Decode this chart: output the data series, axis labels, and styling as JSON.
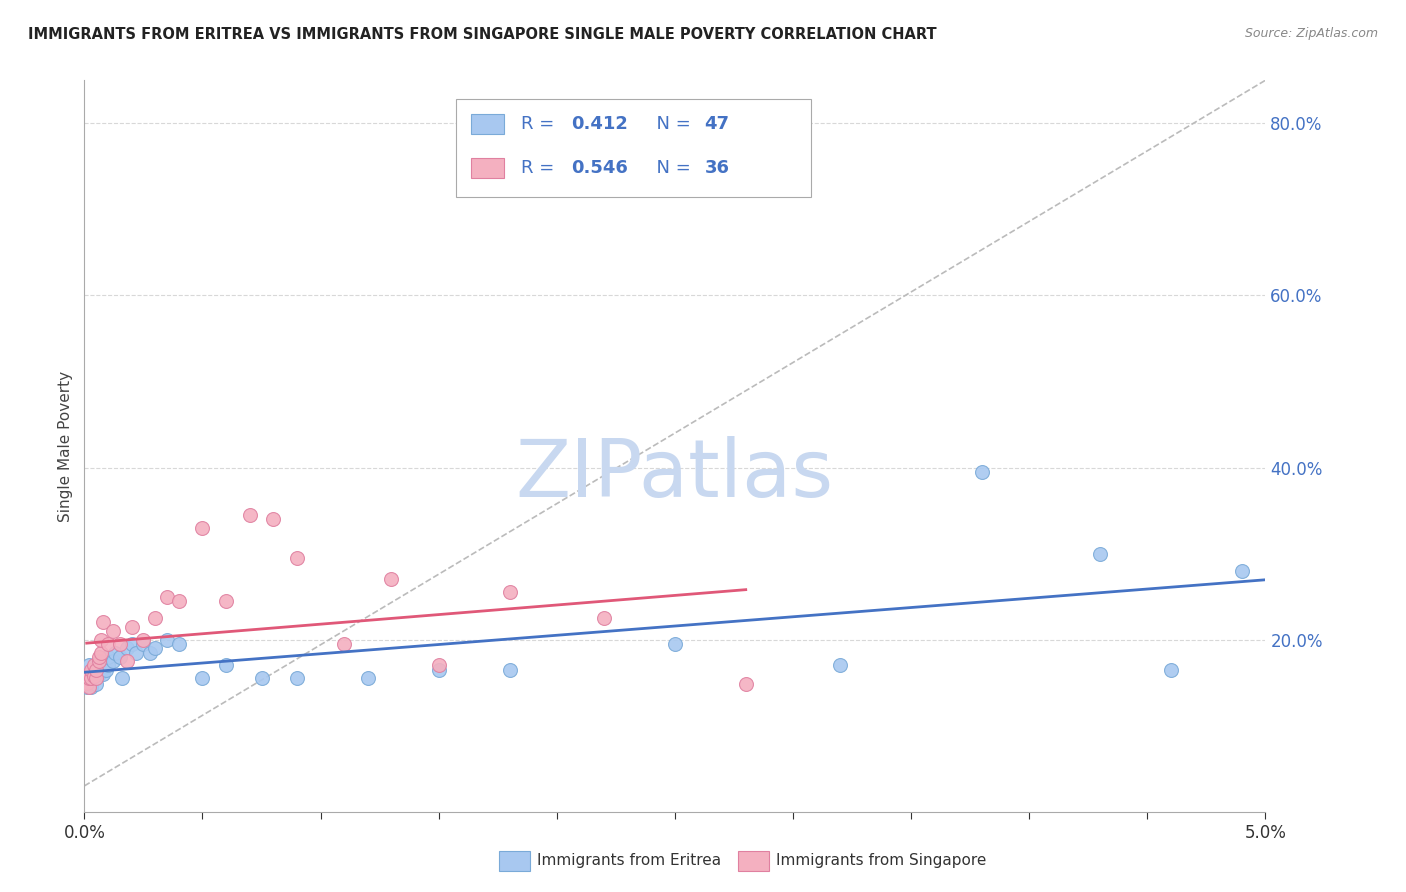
{
  "title": "IMMIGRANTS FROM ERITREA VS IMMIGRANTS FROM SINGAPORE SINGLE MALE POVERTY CORRELATION CHART",
  "source": "Source: ZipAtlas.com",
  "ylabel": "Single Male Poverty",
  "xlim": [
    0.0,
    0.05
  ],
  "ylim": [
    0.0,
    0.85
  ],
  "yticks_right": [
    0.2,
    0.4,
    0.6,
    0.8
  ],
  "ytick_labels_right": [
    "20.0%",
    "40.0%",
    "60.0%",
    "80.0%"
  ],
  "right_axis_color": "#4472C4",
  "watermark": "ZIPatlas",
  "watermark_color": "#c8d8f0",
  "legend_r1_val": "0.412",
  "legend_n1_val": "47",
  "legend_r2_val": "0.546",
  "legend_n2_val": "36",
  "series1_color": "#a8c8f0",
  "series1_edge": "#7aaad8",
  "series2_color": "#f4b0c0",
  "series2_edge": "#e080a0",
  "trendline1_color": "#4472C4",
  "trendline2_color": "#e05878",
  "refline_color": "#bbbbbb",
  "series1_label": "Immigrants from Eritrea",
  "series2_label": "Immigrants from Singapore",
  "series1_x": [
    0.0001,
    0.0001,
    0.0001,
    0.0002,
    0.0002,
    0.0002,
    0.0002,
    0.0003,
    0.0003,
    0.0003,
    0.0004,
    0.0004,
    0.0005,
    0.0005,
    0.0006,
    0.0006,
    0.0007,
    0.0007,
    0.0008,
    0.0009,
    0.001,
    0.001,
    0.0012,
    0.0013,
    0.0015,
    0.0016,
    0.0018,
    0.002,
    0.0022,
    0.0025,
    0.0028,
    0.003,
    0.0035,
    0.004,
    0.005,
    0.006,
    0.0075,
    0.009,
    0.012,
    0.015,
    0.018,
    0.025,
    0.032,
    0.038,
    0.043,
    0.046,
    0.049
  ],
  "series1_y": [
    0.155,
    0.16,
    0.145,
    0.15,
    0.155,
    0.148,
    0.17,
    0.15,
    0.155,
    0.145,
    0.158,
    0.163,
    0.155,
    0.148,
    0.16,
    0.17,
    0.162,
    0.175,
    0.16,
    0.165,
    0.17,
    0.18,
    0.175,
    0.185,
    0.18,
    0.155,
    0.19,
    0.195,
    0.185,
    0.195,
    0.185,
    0.19,
    0.2,
    0.195,
    0.155,
    0.17,
    0.155,
    0.155,
    0.155,
    0.165,
    0.165,
    0.195,
    0.17,
    0.395,
    0.3,
    0.165,
    0.28
  ],
  "series2_x": [
    0.0001,
    0.0001,
    0.0002,
    0.0002,
    0.0002,
    0.0003,
    0.0003,
    0.0004,
    0.0004,
    0.0005,
    0.0005,
    0.0006,
    0.0006,
    0.0007,
    0.0007,
    0.0008,
    0.001,
    0.0012,
    0.0015,
    0.0018,
    0.002,
    0.0025,
    0.003,
    0.0035,
    0.004,
    0.005,
    0.006,
    0.007,
    0.008,
    0.009,
    0.011,
    0.013,
    0.015,
    0.018,
    0.022,
    0.028
  ],
  "series2_y": [
    0.15,
    0.155,
    0.145,
    0.155,
    0.16,
    0.155,
    0.165,
    0.158,
    0.17,
    0.155,
    0.165,
    0.175,
    0.18,
    0.185,
    0.2,
    0.22,
    0.195,
    0.21,
    0.195,
    0.175,
    0.215,
    0.2,
    0.225,
    0.25,
    0.245,
    0.33,
    0.245,
    0.345,
    0.34,
    0.295,
    0.195,
    0.27,
    0.17,
    0.255,
    0.225,
    0.148
  ]
}
